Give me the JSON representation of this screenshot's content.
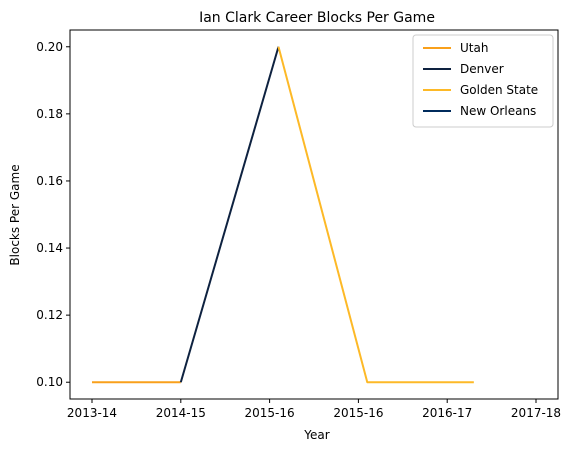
{
  "chart_data": {
    "type": "line",
    "title": "Ian Clark  Career Blocks Per Game",
    "xlabel": "Year",
    "ylabel": "Blocks Per Game",
    "categories": [
      "2013-14",
      "2014-15",
      "2015-16",
      "2015-16",
      "2016-17",
      "2017-18"
    ],
    "ylim": [
      0.095,
      0.205
    ],
    "yticks": [
      "0.10",
      "0.12",
      "0.14",
      "0.16",
      "0.18",
      "0.20"
    ],
    "grid": false,
    "legend_position": "top-right",
    "series": [
      {
        "name": "Utah",
        "color": "#F9A01B",
        "points": [
          [
            0,
            0.1
          ],
          [
            1,
            0.1
          ]
        ]
      },
      {
        "name": "Denver",
        "color": "#0E2240",
        "points": [
          [
            1,
            0.1
          ],
          [
            2.1,
            0.2
          ]
        ]
      },
      {
        "name": "Golden State",
        "color": "#FDB927",
        "points": [
          [
            2.1,
            0.2
          ],
          [
            3.1,
            0.1
          ],
          [
            4.3,
            0.1
          ]
        ]
      },
      {
        "name": "New Orleans",
        "color": "#002B5C",
        "points": []
      }
    ]
  }
}
